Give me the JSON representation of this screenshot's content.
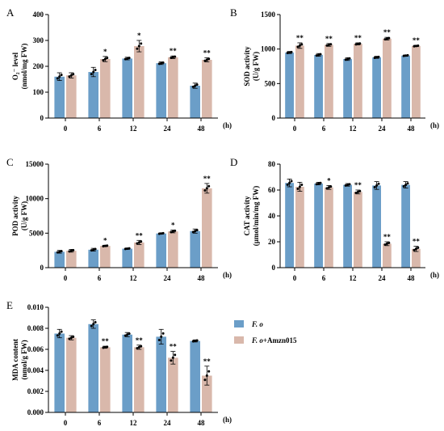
{
  "colors": {
    "control": "#6b9ec8",
    "treatment": "#d9b8ab",
    "axis": "#000000",
    "point": "#000000"
  },
  "legend": {
    "items": [
      {
        "name": "F. o",
        "italic_part": "F. o",
        "suffix": "",
        "color": "#6b9ec8"
      },
      {
        "name": "F. o+Amzn015",
        "italic_part": "F. o",
        "suffix": "+Amzn015",
        "color": "#d9b8ab"
      }
    ]
  },
  "chart_data": [
    {
      "panel": "A",
      "type": "bar",
      "ylabel_lines": [
        "O₂⁻ level",
        "(nmol/mg FW)"
      ],
      "unit": "(h)",
      "categories": [
        "0",
        "6",
        "12",
        "24",
        "48"
      ],
      "ylim": [
        0,
        400
      ],
      "yticks": [
        0,
        100,
        200,
        300,
        400
      ],
      "series": [
        {
          "name": "F. o",
          "values": [
            160,
            178,
            230,
            212,
            125
          ],
          "errors": [
            15,
            18,
            5,
            5,
            10
          ]
        },
        {
          "name": "F. o+Amzn015",
          "values": [
            165,
            228,
            278,
            235,
            225
          ],
          "errors": [
            10,
            10,
            22,
            5,
            8
          ]
        }
      ],
      "significance": [
        "",
        "*",
        "*",
        "**",
        "**"
      ]
    },
    {
      "panel": "B",
      "type": "bar",
      "ylabel_lines": [
        "SOD activity",
        "(U/g FW)"
      ],
      "unit": "(h)",
      "categories": [
        "0",
        "6",
        "12",
        "24",
        "48"
      ],
      "ylim": [
        0,
        1500
      ],
      "yticks": [
        0,
        500,
        1000,
        1500
      ],
      "series": [
        {
          "name": "F. o",
          "values": [
            950,
            915,
            855,
            880,
            905
          ],
          "errors": [
            15,
            20,
            20,
            15,
            10
          ]
        },
        {
          "name": "F. o+Amzn015",
          "values": [
            1050,
            1060,
            1075,
            1150,
            1045
          ],
          "errors": [
            40,
            20,
            15,
            20,
            10
          ]
        }
      ],
      "significance": [
        "**",
        "**",
        "**",
        "**",
        "**"
      ]
    },
    {
      "panel": "C",
      "type": "bar",
      "ylabel_lines": [
        "POD activity",
        "(U/g FW)"
      ],
      "unit": "(h)",
      "categories": [
        "0",
        "6",
        "12",
        "24",
        "48"
      ],
      "ylim": [
        0,
        15000
      ],
      "yticks": [
        0,
        5000,
        10000,
        15000
      ],
      "series": [
        {
          "name": "F. o",
          "values": [
            2300,
            2600,
            2750,
            4950,
            5300
          ],
          "errors": [
            200,
            200,
            100,
            100,
            300
          ]
        },
        {
          "name": "F. o+Amzn015",
          "values": [
            2450,
            3150,
            3650,
            5250,
            11500
          ],
          "errors": [
            200,
            100,
            300,
            200,
            700
          ]
        }
      ],
      "significance": [
        "",
        "*",
        "**",
        "*",
        "**"
      ]
    },
    {
      "panel": "D",
      "type": "bar",
      "ylabel_lines": [
        "CAT activity",
        "(µmol/min/mg FW)"
      ],
      "unit": "(h)",
      "categories": [
        "0",
        "6",
        "12",
        "24",
        "48"
      ],
      "ylim": [
        0,
        80
      ],
      "yticks": [
        0,
        20,
        40,
        60,
        80
      ],
      "series": [
        {
          "name": "F. o",
          "values": [
            65.5,
            65,
            64,
            63.5,
            64
          ],
          "errors": [
            3,
            1,
            1,
            3,
            2.5
          ]
        },
        {
          "name": "F. o+Amzn015",
          "values": [
            62.5,
            62,
            58.5,
            18.5,
            14.5
          ],
          "errors": [
            3.5,
            1.5,
            1.5,
            1.5,
            2
          ]
        }
      ],
      "significance": [
        "",
        "*",
        "**",
        "**",
        "**"
      ]
    },
    {
      "panel": "E",
      "type": "bar",
      "ylabel_lines": [
        "MDA content",
        "(nmol/g FW)"
      ],
      "unit": "(h)",
      "categories": [
        "0",
        "6",
        "12",
        "24",
        "48"
      ],
      "ylim": [
        0,
        0.01
      ],
      "yticks": [
        "0.000",
        "0.002",
        "0.004",
        "0.006",
        "0.008",
        "0.010"
      ],
      "series": [
        {
          "name": "F. o",
          "values": [
            0.0075,
            0.0084,
            0.0074,
            0.0072,
            0.0068
          ],
          "errors": [
            0.0004,
            0.0004,
            0.0002,
            0.0007,
            0.0001
          ]
        },
        {
          "name": "F. o+Amzn015",
          "values": [
            0.0071,
            0.0062,
            0.0062,
            0.0052,
            0.0035
          ],
          "errors": [
            0.0002,
            0.0001,
            0.0002,
            0.0006,
            0.0009
          ]
        }
      ],
      "significance": [
        "",
        "**",
        "**",
        "**",
        "**"
      ]
    }
  ]
}
